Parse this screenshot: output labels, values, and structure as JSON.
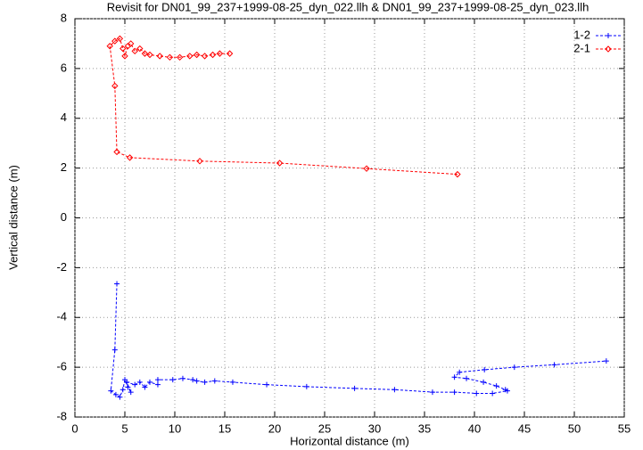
{
  "chart_data": {
    "type": "line",
    "title": "Revisit for DN01_99_237+1999-08-25_dyn_022.llh & DN01_99_237+1999-08-25_dyn_023.llh",
    "x_label": "Horizontal distance (m)",
    "y_label": "Vertical distance (m)",
    "xlim": [
      0,
      55
    ],
    "xticks": [
      0,
      5,
      10,
      15,
      20,
      25,
      30,
      35,
      40,
      45,
      50,
      55
    ],
    "ylim": [
      -8,
      8
    ],
    "yticks": [
      -8,
      -6,
      -4,
      -2,
      0,
      2,
      4,
      6,
      8
    ],
    "grid": true,
    "legend": "top-right",
    "series": [
      {
        "name": "1-2",
        "color": "#0000ff",
        "marker": "plus",
        "x": [
          4.2,
          4.0,
          3.6,
          4.1,
          4.5,
          4.8,
          5.0,
          5.3,
          5.6,
          5.2,
          6.0,
          6.5,
          7.0,
          7.5,
          8.3,
          8.3,
          9.8,
          10.8,
          11.8,
          12.2,
          13.0,
          14.0,
          15.8,
          19.2,
          23.2,
          28.0,
          32.0,
          35.8,
          38.0,
          40.2,
          41.8,
          43.3,
          43.1,
          42.2,
          40.9,
          39.2,
          38.0,
          38.5,
          41.0,
          44.0,
          48.0,
          53.2
        ],
        "values": [
          -2.65,
          -5.3,
          -6.95,
          -7.1,
          -7.2,
          -6.9,
          -6.5,
          -6.8,
          -7.0,
          -6.6,
          -6.7,
          -6.6,
          -6.8,
          -6.6,
          -6.7,
          -6.5,
          -6.5,
          -6.45,
          -6.5,
          -6.55,
          -6.6,
          -6.55,
          -6.6,
          -6.7,
          -6.78,
          -6.85,
          -6.9,
          -7.0,
          -7.0,
          -7.05,
          -7.05,
          -6.95,
          -6.9,
          -6.75,
          -6.6,
          -6.45,
          -6.4,
          -6.2,
          -6.1,
          -6.0,
          -5.9,
          -5.75
        ]
      },
      {
        "name": "2-1",
        "color": "#ff0000",
        "marker": "diamond",
        "x": [
          38.3,
          29.2,
          20.5,
          12.5,
          5.5,
          4.2,
          4.0,
          3.5,
          4.0,
          4.5,
          4.8,
          5.0,
          5.3,
          5.6,
          6.0,
          6.5,
          7.0,
          7.5,
          8.5,
          9.5,
          10.5,
          11.5,
          12.2,
          13.0,
          13.8,
          14.5,
          15.5
        ],
        "values": [
          1.75,
          1.98,
          2.2,
          2.28,
          2.42,
          2.65,
          5.3,
          6.9,
          7.1,
          7.2,
          6.8,
          6.5,
          6.9,
          7.0,
          6.7,
          6.8,
          6.6,
          6.55,
          6.5,
          6.45,
          6.45,
          6.5,
          6.55,
          6.5,
          6.55,
          6.6,
          6.6
        ]
      }
    ]
  }
}
